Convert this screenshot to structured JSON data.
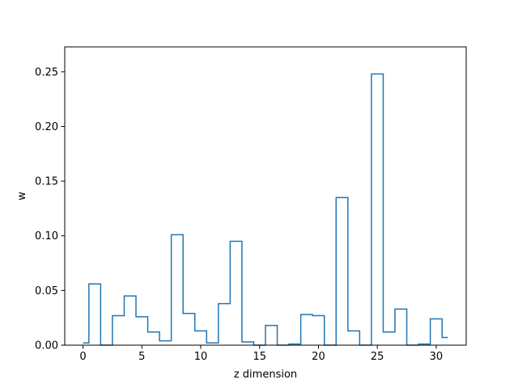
{
  "chart_data": {
    "type": "line",
    "drawstyle": "steps-mid",
    "xlabel": "z dimension",
    "ylabel": "w",
    "xlim": [
      -1.55,
      32.55
    ],
    "ylim": [
      0.0,
      0.2728
    ],
    "grid": false,
    "line_color": "#1f77b4",
    "xticks": [
      0,
      5,
      10,
      15,
      20,
      25,
      30
    ],
    "xtick_labels": [
      "0",
      "5",
      "10",
      "15",
      "20",
      "25",
      "30"
    ],
    "yticks": [
      0.0,
      0.05,
      0.1,
      0.15,
      0.2,
      0.25
    ],
    "ytick_labels": [
      "0.00",
      "0.05",
      "0.10",
      "0.15",
      "0.20",
      "0.25"
    ],
    "x": [
      0,
      1,
      2,
      3,
      4,
      5,
      6,
      7,
      8,
      9,
      10,
      11,
      12,
      13,
      14,
      15,
      16,
      17,
      18,
      19,
      20,
      21,
      22,
      23,
      24,
      25,
      26,
      27,
      28,
      29,
      30,
      31
    ],
    "values": [
      0.002,
      0.056,
      0.0,
      0.027,
      0.045,
      0.026,
      0.012,
      0.004,
      0.101,
      0.029,
      0.013,
      0.002,
      0.038,
      0.095,
      0.003,
      0.0,
      0.018,
      0.0,
      0.001,
      0.028,
      0.027,
      0.0,
      0.135,
      0.013,
      0.0,
      0.248,
      0.012,
      0.033,
      0.0,
      0.001,
      0.024,
      0.007
    ]
  }
}
